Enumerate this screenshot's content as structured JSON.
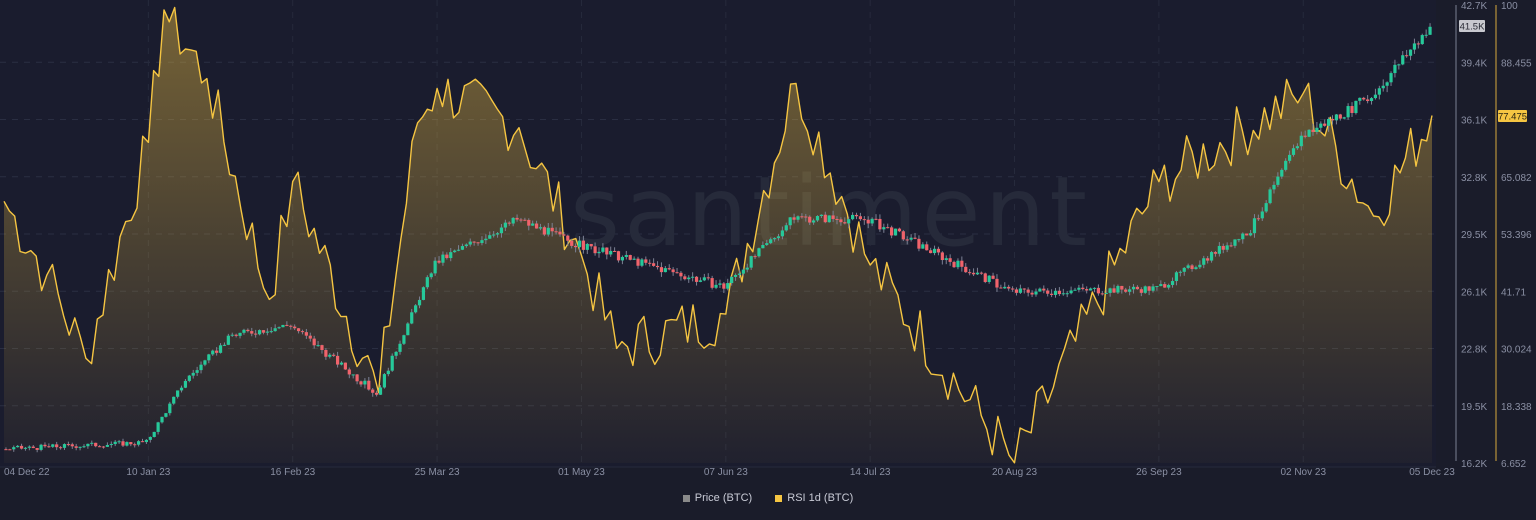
{
  "chart_data": {
    "type": "line",
    "title": "",
    "watermark": "santiment",
    "xlabel": "",
    "ylabel_left": "",
    "x_ticks": [
      "04 Dec 22",
      "10 Jan 23",
      "16 Feb 23",
      "25 Mar 23",
      "01 May 23",
      "07 Jun 23",
      "14 Jul 23",
      "20 Aug 23",
      "26 Sep 23",
      "02 Nov 23",
      "05 Dec 23"
    ],
    "price_axis": {
      "label": "Price (BTC)",
      "ticks": [
        "42.7K",
        "39.4K",
        "36.1K",
        "32.8K",
        "29.5K",
        "26.1K",
        "22.8K",
        "19.5K",
        "16.2K"
      ],
      "range": [
        16200,
        42700
      ],
      "current": "41.5K"
    },
    "rsi_axis": {
      "label": "RSI 1d (BTC)",
      "ticks": [
        "100",
        "88.455",
        "77.475",
        "65.082",
        "53.396",
        "41.71",
        "30.024",
        "18.338",
        "6.652"
      ],
      "range": [
        6.652,
        100
      ],
      "current": "77.475"
    },
    "grid": true,
    "legend_position": "bottom-center",
    "series": [
      {
        "name": "Price (BTC)",
        "type": "candlestick",
        "color_up": "#26c99a",
        "color_down": "#f0636b",
        "approx_close_by_date": [
          {
            "date": "04 Dec 22",
            "close": 17000
          },
          {
            "date": "10 Jan 23",
            "close": 17400
          },
          {
            "date": "20 Jan 23",
            "close": 21000
          },
          {
            "date": "01 Feb 23",
            "close": 23600
          },
          {
            "date": "16 Feb 23",
            "close": 24200
          },
          {
            "date": "10 Mar 23",
            "close": 20200
          },
          {
            "date": "25 Mar 23",
            "close": 27800
          },
          {
            "date": "15 Apr 23",
            "close": 30300
          },
          {
            "date": "01 May 23",
            "close": 28800
          },
          {
            "date": "07 Jun 23",
            "close": 26400
          },
          {
            "date": "25 Jun 23",
            "close": 30400
          },
          {
            "date": "14 Jul 23",
            "close": 30300
          },
          {
            "date": "20 Aug 23",
            "close": 26100
          },
          {
            "date": "26 Sep 23",
            "close": 26300
          },
          {
            "date": "20 Oct 23",
            "close": 29700
          },
          {
            "date": "02 Nov 23",
            "close": 35100
          },
          {
            "date": "20 Nov 23",
            "close": 37400
          },
          {
            "date": "05 Dec 23",
            "close": 41500
          }
        ]
      },
      {
        "name": "RSI 1d (BTC)",
        "type": "area",
        "color": "#f5c542",
        "approx_values_by_date": [
          {
            "date": "04 Dec 22",
            "value": 60
          },
          {
            "date": "15 Dec 22",
            "value": 45
          },
          {
            "date": "25 Dec 22",
            "value": 28
          },
          {
            "date": "10 Jan 23",
            "value": 72
          },
          {
            "date": "14 Jan 23",
            "value": 99
          },
          {
            "date": "25 Jan 23",
            "value": 85
          },
          {
            "date": "10 Feb 23",
            "value": 40
          },
          {
            "date": "16 Feb 23",
            "value": 64
          },
          {
            "date": "10 Mar 23",
            "value": 21
          },
          {
            "date": "20 Mar 23",
            "value": 76
          },
          {
            "date": "25 Mar 23",
            "value": 83
          },
          {
            "date": "15 Apr 23",
            "value": 75
          },
          {
            "date": "01 May 23",
            "value": 49
          },
          {
            "date": "10 May 23",
            "value": 30
          },
          {
            "date": "07 Jun 23",
            "value": 37
          },
          {
            "date": "25 Jun 23",
            "value": 84
          },
          {
            "date": "14 Jul 23",
            "value": 47
          },
          {
            "date": "20 Aug 23",
            "value": 6.7
          },
          {
            "date": "26 Sep 23",
            "value": 64
          },
          {
            "date": "02 Nov 23",
            "value": 82
          },
          {
            "date": "20 Nov 23",
            "value": 57
          },
          {
            "date": "05 Dec 23",
            "value": 77.475
          }
        ]
      }
    ]
  },
  "legend": {
    "items": [
      {
        "label": "Price (BTC)",
        "color": "#8a8a8a"
      },
      {
        "label": "RSI 1d (BTC)",
        "color": "#f5c542"
      }
    ]
  }
}
